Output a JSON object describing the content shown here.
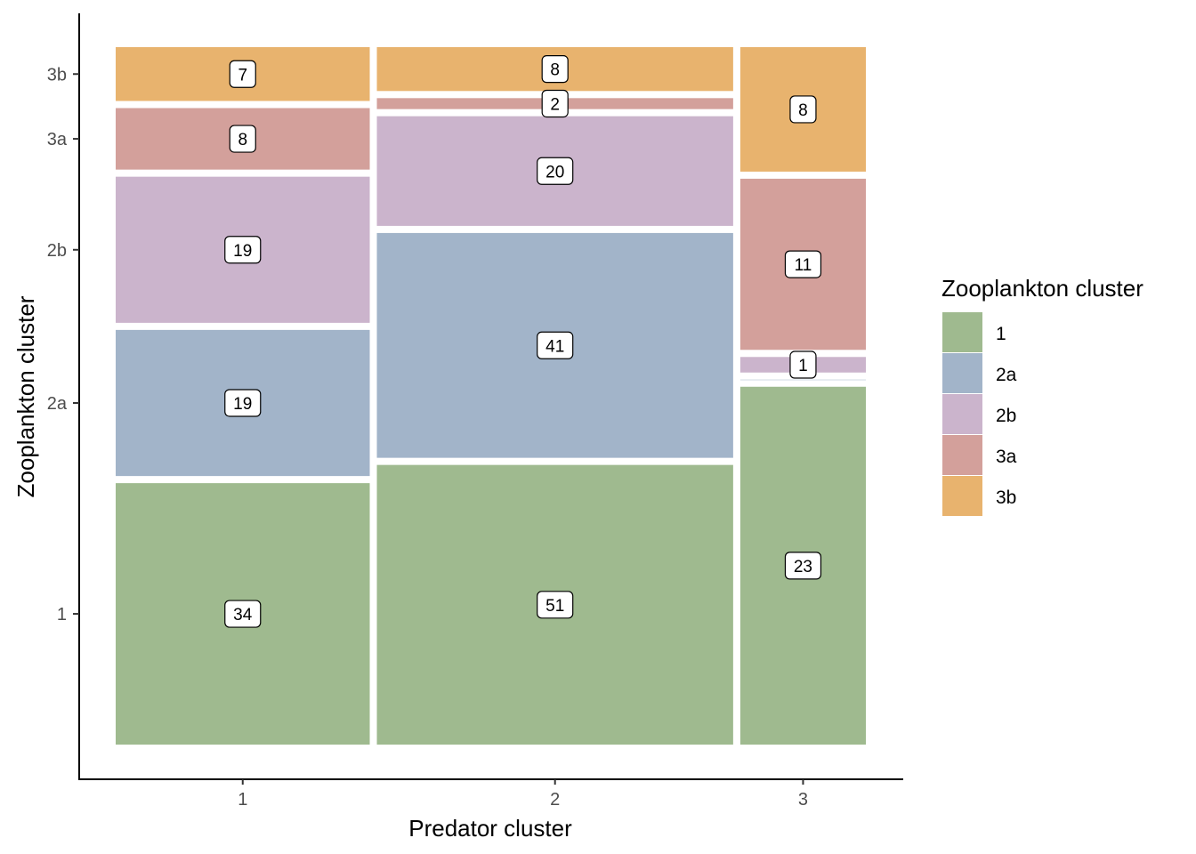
{
  "chart_data": {
    "type": "mosaic",
    "xlabel": "Predator cluster",
    "ylabel": "Zooplankton cluster",
    "categories": [
      "1",
      "2",
      "3"
    ],
    "y_categories": [
      "1",
      "2a",
      "2b",
      "3a",
      "3b"
    ],
    "series": [
      {
        "name": "1",
        "values": [
          34,
          51,
          23
        ]
      },
      {
        "name": "2a",
        "values": [
          19,
          41,
          0
        ]
      },
      {
        "name": "2b",
        "values": [
          19,
          20,
          1
        ]
      },
      {
        "name": "3a",
        "values": [
          8,
          2,
          11
        ]
      },
      {
        "name": "3b",
        "values": [
          7,
          8,
          8
        ]
      }
    ],
    "y_tick_labels": [
      "1",
      "2a",
      "2b",
      "3a",
      "3b"
    ],
    "x_tick_labels": [
      "1",
      "2",
      "3"
    ],
    "legend": {
      "title": "Zooplankton cluster",
      "position": "right",
      "entries": [
        "1",
        "2a",
        "2b",
        "3a",
        "3b"
      ]
    },
    "colors": {
      "1": "#9fba8f",
      "2a": "#a2b4c9",
      "2b": "#cbb4cc",
      "3a": "#d3a09b",
      "3b": "#e8b36e"
    },
    "grid": false
  }
}
